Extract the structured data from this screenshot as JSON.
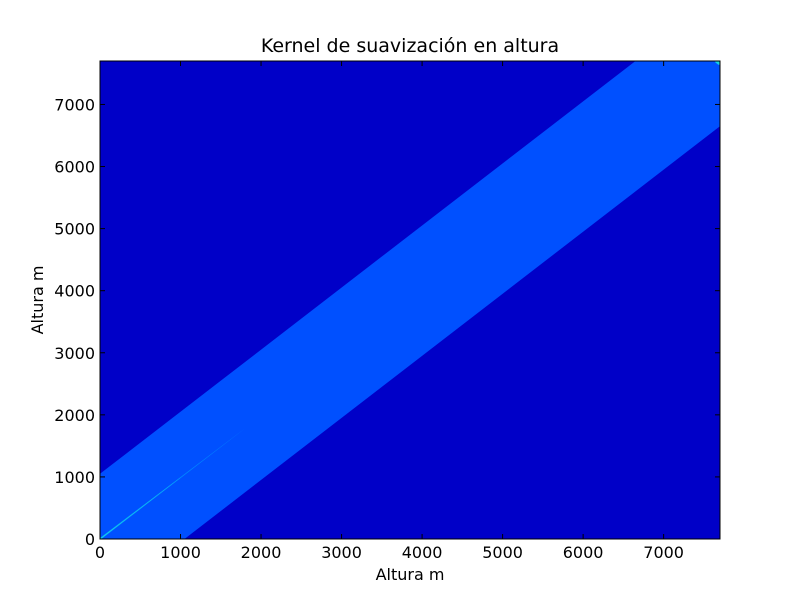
{
  "chart_data": {
    "type": "heatmap",
    "title": "Kernel de suavización en altura",
    "xlabel": "Altura m",
    "ylabel": "Altura m",
    "xlim": [
      0,
      7700
    ],
    "ylim": [
      0,
      7700
    ],
    "xticks": [
      0,
      1000,
      2000,
      3000,
      4000,
      5000,
      6000,
      7000
    ],
    "yticks": [
      0,
      1000,
      2000,
      3000,
      4000,
      5000,
      6000,
      7000
    ],
    "xtick_labels": [
      "0",
      "1000",
      "2000",
      "3000",
      "4000",
      "5000",
      "6000",
      "7000"
    ],
    "ytick_labels": [
      "0",
      "1000",
      "2000",
      "3000",
      "4000",
      "5000",
      "6000",
      "7000"
    ],
    "grid": false,
    "background_level_color": "#0000c8",
    "regions": [
      {
        "level": "band",
        "color": "#0050ff",
        "polygon": [
          [
            0,
            1050
          ],
          [
            6650,
            7700
          ],
          [
            7700,
            7700
          ],
          [
            7700,
            6650
          ],
          [
            1050,
            0
          ],
          [
            0,
            0
          ]
        ]
      },
      {
        "level": "narrow-lower",
        "color": "#0088ff",
        "polygon": [
          [
            0,
            20
          ],
          [
            1800,
            1780
          ],
          [
            1760,
            1740
          ],
          [
            20,
            0
          ],
          [
            0,
            0
          ]
        ]
      },
      {
        "level": "core-lower",
        "color": "#14d2e6",
        "polygon": [
          [
            0,
            10
          ],
          [
            1000,
            990
          ],
          [
            990,
            980
          ],
          [
            10,
            0
          ]
        ]
      },
      {
        "level": "core-upper",
        "color": "#14d2e6",
        "polygon": [
          [
            7640,
            7700
          ],
          [
            7700,
            7700
          ],
          [
            7700,
            7640
          ],
          [
            7680,
            7640
          ],
          [
            7640,
            7680
          ]
        ]
      }
    ]
  }
}
